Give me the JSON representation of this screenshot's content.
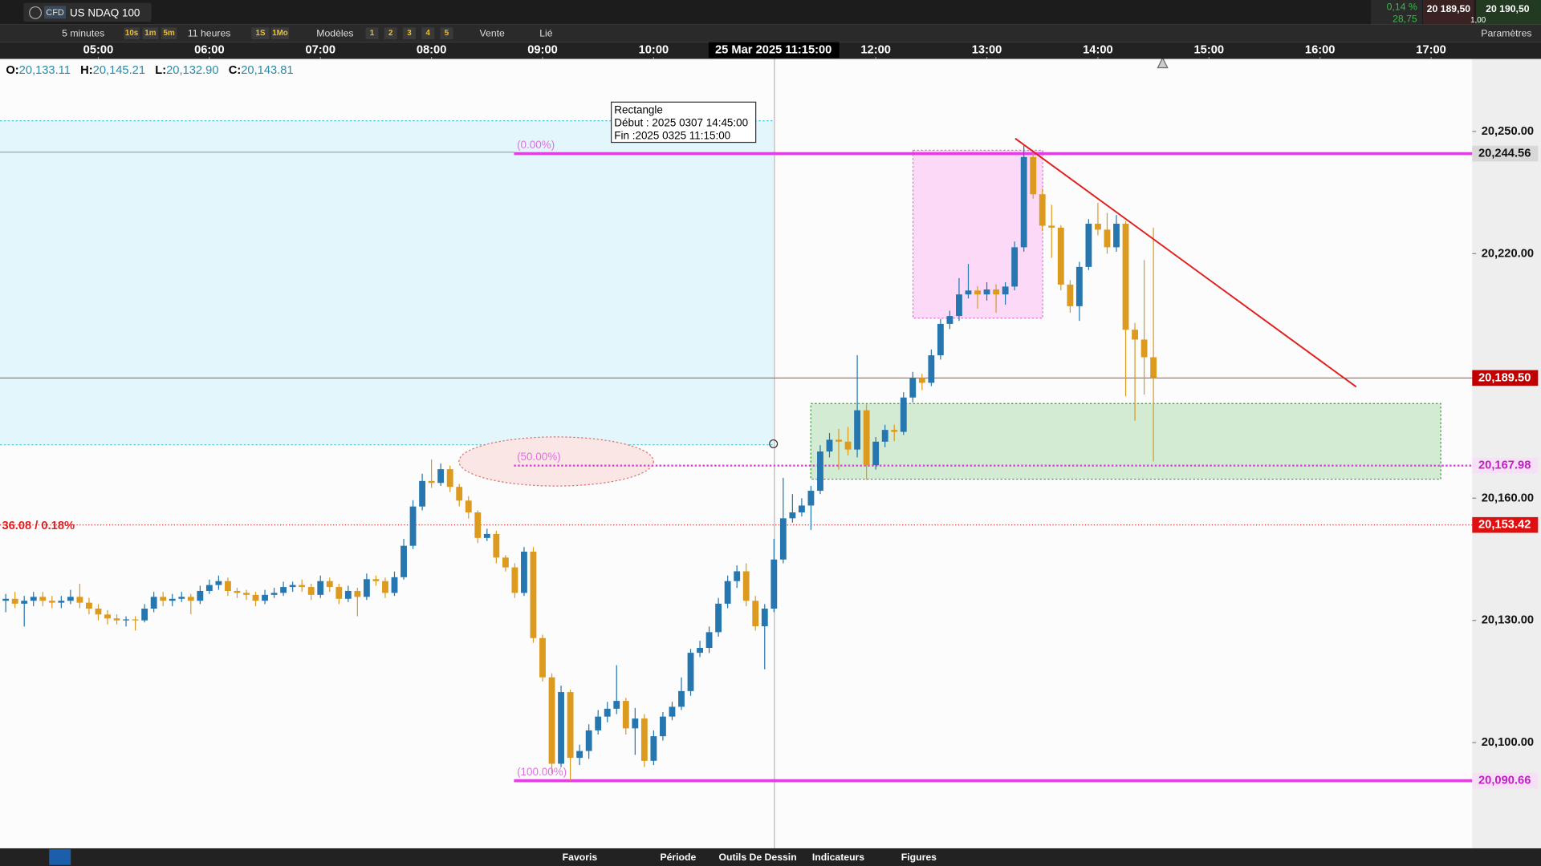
{
  "header": {
    "badge": "CFD",
    "instrument": "US NDAQ 100",
    "change_pct": "0,14 %",
    "change_pts": "28,75",
    "bid": "20 189,50",
    "ask": "20 190,50",
    "size": "1,00"
  },
  "toolbar": {
    "interval": "5 minutes",
    "quick": [
      "10s",
      "1m",
      "5m"
    ],
    "range": "11 heures",
    "periods": [
      "1S",
      "1Mo"
    ],
    "templates": "Modèles",
    "slots": [
      "1",
      "2",
      "3",
      "4",
      "5"
    ],
    "side": "Vente",
    "link": "Lié",
    "settings": "Paramètres"
  },
  "ohlc_legend": [
    {
      "key": "O:",
      "value": "20,133.11"
    },
    {
      "key": "H:",
      "value": "20,145.21"
    },
    {
      "key": "L:",
      "value": "20,132.90"
    },
    {
      "key": "C:",
      "value": "20,143.81"
    }
  ],
  "drawing_tooltip": [
    "Rectangle",
    "Début : 2025 0307 14:45:00",
    "Fin :2025 0325 11:15:00"
  ],
  "footer": [
    "Favoris",
    "Période",
    "Outils De Dessin",
    "Indicateurs",
    "Figures"
  ],
  "chart_data": {
    "type": "candlestick",
    "crosshair_label": "25 Mar 2025 11:15:00",
    "up_color": "#2677b0",
    "down_color": "#dc9a1e",
    "xlim": [
      246.9,
      1042.2
    ],
    "xticks": [
      {
        "value": 300,
        "label": "05:00"
      },
      {
        "value": 360,
        "label": "06:00"
      },
      {
        "value": 420,
        "label": "07:00"
      },
      {
        "value": 480,
        "label": "08:00"
      },
      {
        "value": 540,
        "label": "09:00"
      },
      {
        "value": 600,
        "label": "10:00"
      },
      {
        "value": 720,
        "label": "12:00"
      },
      {
        "value": 780,
        "label": "13:00"
      },
      {
        "value": 840,
        "label": "14:00"
      },
      {
        "value": 900,
        "label": "15:00"
      },
      {
        "value": 960,
        "label": "16:00"
      },
      {
        "value": 1020,
        "label": "17:00"
      }
    ],
    "ylim": [
      20074.3,
      20267.8
    ],
    "yticks": [
      {
        "value": 20100,
        "label": "20,100.00"
      },
      {
        "value": 20130,
        "label": "20,130.00"
      },
      {
        "value": 20160,
        "label": "20,160.00"
      },
      {
        "value": 20220,
        "label": "20,220.00"
      },
      {
        "value": 20250,
        "label": "20,250.00"
      }
    ],
    "fib_levels": [
      {
        "value": 20244.56,
        "label": "20,244.56",
        "fib": "(0.00%)",
        "dashed": false
      },
      {
        "value": 20167.98,
        "label": "20,167.98",
        "fib": "(50.00%)",
        "dashed": true
      },
      {
        "value": 20090.66,
        "label": "20,090.66",
        "fib": "(100.00%)",
        "dashed": false
      }
    ],
    "price_line": {
      "value": 20189.5,
      "label": "20,189.50"
    },
    "spread_line": {
      "value": 20153.42,
      "label": "20,153.42",
      "note": "36.08 / 0.18%"
    },
    "x": [
      250,
      255,
      260,
      265,
      270,
      275,
      280,
      285,
      290,
      295,
      300,
      305,
      310,
      315,
      320,
      325,
      330,
      335,
      340,
      345,
      350,
      355,
      360,
      365,
      370,
      375,
      380,
      385,
      390,
      395,
      400,
      405,
      410,
      415,
      420,
      425,
      430,
      435,
      440,
      445,
      450,
      455,
      460,
      465,
      470,
      475,
      480,
      485,
      490,
      495,
      500,
      505,
      510,
      515,
      520,
      525,
      530,
      535,
      540,
      545,
      550,
      555,
      560,
      565,
      570,
      575,
      580,
      585,
      590,
      595,
      600,
      605,
      610,
      615,
      620,
      625,
      630,
      635,
      640,
      645,
      650,
      655,
      660,
      665,
      670,
      675,
      680,
      685,
      690,
      695,
      700,
      705,
      710,
      715,
      720,
      725,
      730,
      735,
      740,
      745,
      750,
      755,
      760,
      765,
      770,
      775,
      780,
      785,
      790,
      795,
      800,
      805,
      810,
      815,
      820,
      825,
      830,
      835,
      840,
      845,
      850,
      855,
      860,
      865,
      870
    ],
    "open": [
      20134.82,
      20135.3,
      20134.1,
      20134.82,
      20135.78,
      20134.82,
      20134.34,
      20134.82,
      20135.78,
      20134.34,
      20132.89,
      20131.45,
      20130.48,
      20130.0,
      20130.24,
      20130.0,
      20132.89,
      20135.78,
      20134.82,
      20135.3,
      20135.78,
      20134.82,
      20137.23,
      20138.68,
      20139.64,
      20137.23,
      20136.75,
      20136.27,
      20134.82,
      20136.27,
      20136.75,
      20138.19,
      20138.68,
      20138.19,
      20136.27,
      20139.64,
      20138.19,
      20135.3,
      20137.23,
      20135.78,
      20140.12,
      20139.64,
      20136.75,
      20140.6,
      20148.31,
      20157.95,
      20164.22,
      20163.74,
      20167.11,
      20162.77,
      20159.4,
      20156.51,
      20150.24,
      20151.21,
      20145.42,
      20143.01,
      20136.75,
      20146.87,
      20125.66,
      20116.03,
      20094.82,
      20112.41,
      20096.27,
      20097.95,
      20103.01,
      20106.39,
      20108.32,
      20110.24,
      20103.5,
      20105.91,
      20095.54,
      20101.57,
      20106.39,
      20108.8,
      20112.65,
      20122.05,
      20123.25,
      20127.11,
      20134.1,
      20139.64,
      20142.05,
      20134.82,
      20128.56,
      20132.89,
      20144.94,
      20155.06,
      20156.51,
      20158.19,
      20161.81,
      20171.45,
      20174.34,
      20173.86,
      20171.93,
      20181.57,
      20168.07,
      20173.86,
      20176.75,
      20176.27,
      20184.7,
      20189.52,
      20188.31,
      20195.06,
      20202.77,
      20204.7,
      20210.0,
      20210.96,
      20210.0,
      20211.21,
      20210.0,
      20211.93,
      20221.57,
      20243.73,
      20234.58,
      20226.87,
      20226.39,
      20212.41,
      20207.11,
      20216.75,
      20227.35,
      20225.9,
      20221.57,
      20227.35,
      20201.33,
      20198.92,
      20194.58
    ],
    "high": [
      20136.5,
      20137,
      20136,
      20137,
      20137,
      20136,
      20136,
      20137.5,
      20139,
      20135.5,
      20134,
      20132.5,
      20131.5,
      20131,
      20131,
      20134,
      20137,
      20137,
      20136.5,
      20137,
      20136.5,
      20138.5,
      20140,
      20141,
      20140.5,
      20138,
      20137.5,
      20137,
      20137.5,
      20138,
      20139.5,
      20139.5,
      20140,
      20139,
      20141,
      20140.5,
      20139,
      20138.5,
      20138,
      20141.5,
      20141,
      20140.5,
      20142,
      20150,
      20159.5,
      20166,
      20169.5,
      20168.5,
      20168,
      20163.5,
      20160.5,
      20157,
      20152.5,
      20152,
      20146,
      20144,
      20148,
      20148,
      20126.5,
      20117,
      20114,
      20113,
      20099.5,
      20104.5,
      20108,
      20110,
      20119,
      20111,
      20108.5,
      20107,
      20103,
      20107.5,
      20110,
      20116,
      20123,
      20125,
      20128.5,
      20135.5,
      20141,
      20143.5,
      20144,
      20136,
      20134,
      20150,
      20165,
      20161,
      20160,
      20163,
      20173,
      20176,
      20177,
      20177.5,
      20195.1,
      20183,
      20175,
      20178,
      20178,
      20186,
      20191,
      20190.5,
      20196.5,
      20204,
      20206,
      20214,
      20217.5,
      20212,
      20213,
      20212.5,
      20213,
      20223,
      20246.6,
      20244.6,
      20236,
      20232,
      20227,
      20213.5,
      20218,
      20228.5,
      20232.5,
      20230,
      20229.5,
      20228,
      20203,
      20218.4,
      20226.4
    ],
    "low": [
      20132,
      20133,
      20128.5,
      20133.5,
      20133.5,
      20133,
      20133,
      20134,
      20133,
      20131.5,
      20130,
      20129,
      20129,
      20128.5,
      20127.5,
      20129.5,
      20132,
      20133.5,
      20133.5,
      20134.5,
      20131.5,
      20134,
      20136.5,
      20137.5,
      20136,
      20135.5,
      20135,
      20133.5,
      20134,
      20135.5,
      20136,
      20137,
      20137,
      20135,
      20135.5,
      20137,
      20134,
      20134.5,
      20131,
      20135,
      20138.5,
      20135.5,
      20136,
      20140,
      20147.5,
      20157,
      20162.5,
      20163,
      20161.5,
      20158,
      20155,
      20149,
      20149.5,
      20144,
      20142,
      20135.5,
      20136,
      20124.5,
      20115,
      20092.5,
      20094,
      20090.7,
      20094.5,
      20096,
      20102,
      20105,
      20107,
      20102,
      20097,
      20094,
      20094.5,
      20100.5,
      20105.5,
      20108,
      20111.5,
      20121,
      20122,
      20126,
      20133,
      20138,
      20133.5,
      20127.5,
      20118,
      20132,
      20144,
      20154,
      20155.5,
      20152.2,
      20161,
      20170,
      20167,
      20170.5,
      20170,
      20164.5,
      20167,
      20172.5,
      20174,
      20175.5,
      20183.5,
      20186.5,
      20187.5,
      20194,
      20201.5,
      20203.5,
      20209,
      20206.5,
      20208.5,
      20205.5,
      20207.5,
      20211,
      20220.5,
      20233.5,
      20225.5,
      20219,
      20211,
      20205.5,
      20203.5,
      20216,
      20224.5,
      20220,
      20220.5,
      20185,
      20179,
      20185.4,
      20169.0
    ],
    "close": [
      20135.3,
      20134.1,
      20134.82,
      20135.78,
      20134.82,
      20134.34,
      20134.82,
      20135.78,
      20134.34,
      20132.89,
      20131.45,
      20130.48,
      20130.0,
      20130.24,
      20130.0,
      20132.89,
      20135.78,
      20134.82,
      20135.3,
      20135.78,
      20134.82,
      20137.23,
      20138.68,
      20139.64,
      20137.23,
      20136.75,
      20136.27,
      20134.82,
      20136.27,
      20136.75,
      20138.19,
      20138.68,
      20138.19,
      20136.27,
      20139.64,
      20138.19,
      20135.3,
      20137.23,
      20135.78,
      20140.12,
      20139.64,
      20136.75,
      20140.6,
      20148.31,
      20157.95,
      20164.22,
      20163.74,
      20167.11,
      20162.77,
      20159.4,
      20156.51,
      20150.24,
      20151.21,
      20145.42,
      20143.01,
      20136.75,
      20146.87,
      20125.66,
      20116.03,
      20094.82,
      20112.41,
      20096.27,
      20097.95,
      20103.01,
      20106.39,
      20108.32,
      20110.24,
      20103.5,
      20105.91,
      20095.54,
      20101.57,
      20106.39,
      20108.8,
      20112.65,
      20122.05,
      20123.25,
      20127.11,
      20134.1,
      20139.64,
      20142.05,
      20134.82,
      20128.56,
      20132.89,
      20144.94,
      20155.06,
      20156.51,
      20158.19,
      20161.81,
      20171.45,
      20174.34,
      20173.86,
      20171.93,
      20181.57,
      20168.07,
      20173.86,
      20176.75,
      20176.27,
      20184.7,
      20189.52,
      20188.31,
      20195.06,
      20202.77,
      20204.7,
      20210.0,
      20210.96,
      20210.0,
      20211.21,
      20210.0,
      20211.93,
      20221.57,
      20243.73,
      20234.58,
      20226.87,
      20226.39,
      20212.41,
      20207.11,
      20216.75,
      20227.35,
      20225.9,
      20221.57,
      20227.35,
      20201.33,
      20198.92,
      20194.58,
      20189.5
    ]
  }
}
